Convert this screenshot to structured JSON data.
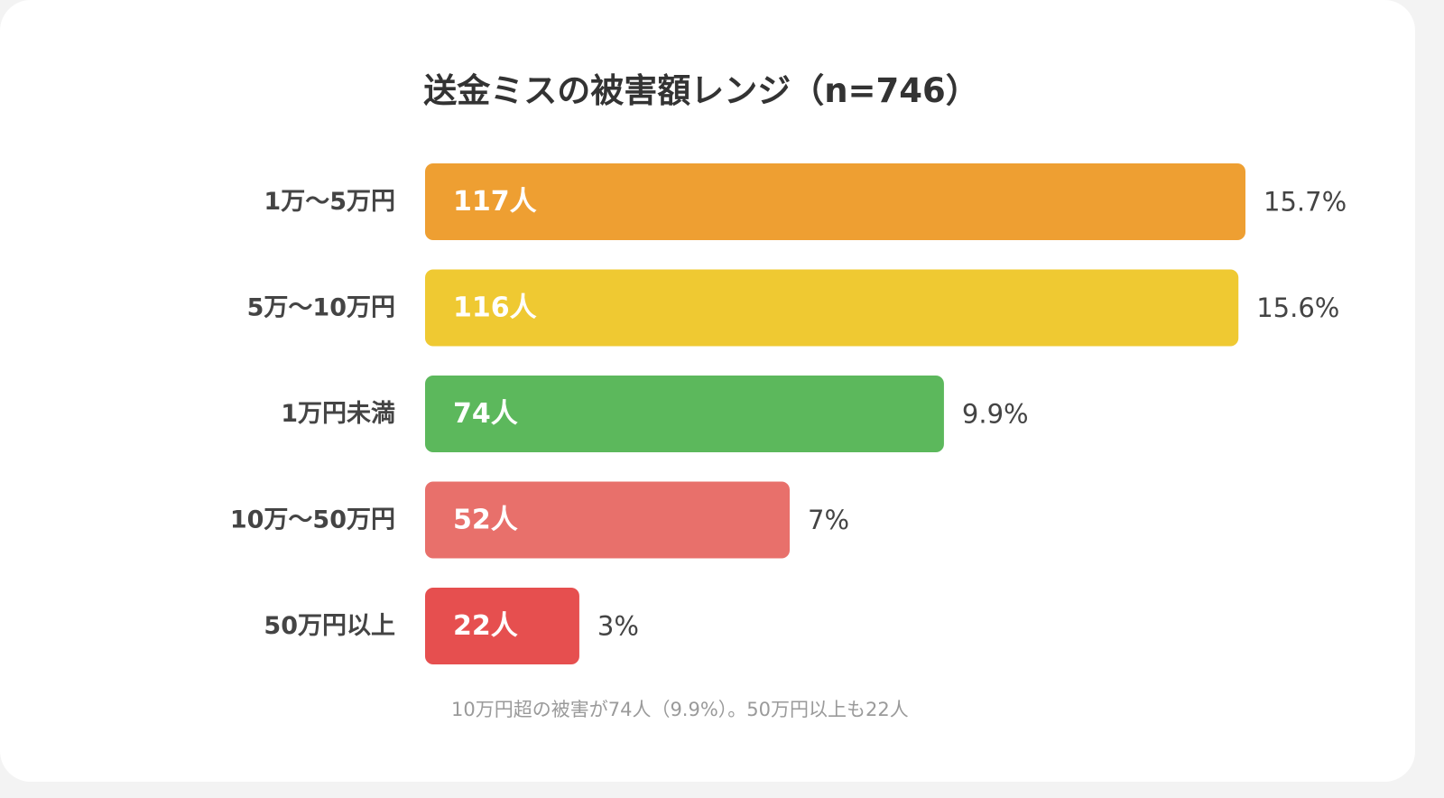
{
  "title": "送金ミスの被害額レンジ（n=746）",
  "note": "10万円超の被害が74人（9.9%）。50万円以上も22人",
  "chart_data": {
    "type": "bar",
    "orientation": "horizontal",
    "title": "送金ミスの被害額レンジ（n=746）",
    "categories": [
      "1万〜5万円",
      "5万〜10万円",
      "1万円未満",
      "10万〜50万円",
      "50万円以上"
    ],
    "values": [
      117,
      116,
      74,
      52,
      22
    ],
    "value_labels": [
      "117人",
      "116人",
      "74人",
      "52人",
      "22人"
    ],
    "percent_labels": [
      "15.7%",
      "15.6%",
      "9.9%",
      "7%",
      "3%"
    ],
    "colors": [
      "#ee9f32",
      "#efc932",
      "#5cb85c",
      "#e8706b",
      "#e64f4f"
    ],
    "xlim": [
      0,
      117
    ],
    "grid": false,
    "legend": "none"
  }
}
